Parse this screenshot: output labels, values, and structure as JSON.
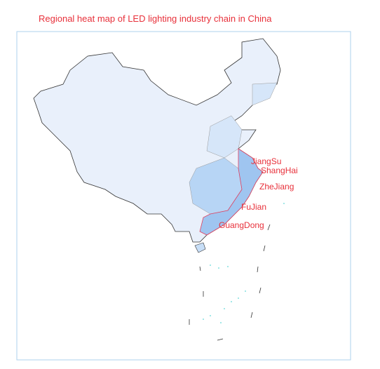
{
  "header": {
    "title": "Regional heat map of LED lighting industry chain in China"
  },
  "map": {
    "labels": [
      "JiangSu",
      "ShangHai",
      "ZheJiang",
      "FuJian",
      "GuangDong"
    ]
  }
}
